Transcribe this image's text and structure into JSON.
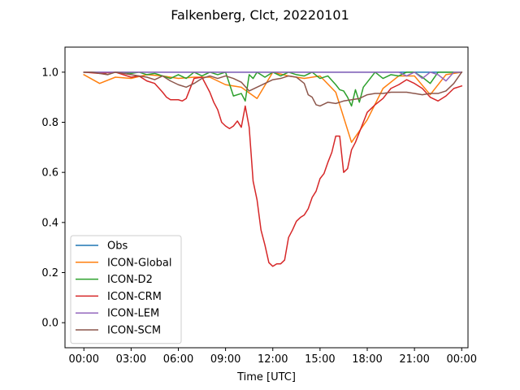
{
  "chart_data": {
    "type": "line",
    "title": "Falkenberg, Clct, 20220101",
    "xlabel": "Time [UTC]",
    "ylabel": "",
    "x_unit": "hours UTC",
    "xlim": [
      -1.2,
      24.4
    ],
    "ylim": [
      -0.1,
      1.1
    ],
    "x_ticks": [
      0,
      3,
      6,
      9,
      12,
      15,
      18,
      21,
      24
    ],
    "x_tick_labels": [
      "00:00",
      "03:00",
      "06:00",
      "09:00",
      "12:00",
      "15:00",
      "18:00",
      "21:00",
      "00:00"
    ],
    "y_ticks": [
      0.0,
      0.2,
      0.4,
      0.6,
      0.8,
      1.0
    ],
    "y_tick_labels": [
      "0.0",
      "0.2",
      "0.4",
      "0.6",
      "0.8",
      "1.0"
    ],
    "grid": false,
    "legend_position": "lower-left",
    "series": [
      {
        "name": "Obs",
        "color": "#1f77b4",
        "x": [
          0,
          24
        ],
        "y": [
          1.0,
          1.0
        ]
      },
      {
        "name": "ICON-Global",
        "color": "#ff7f0e",
        "x": [
          0,
          1,
          2,
          3,
          4,
          5,
          6,
          7,
          8,
          9,
          10,
          11,
          12,
          13,
          14,
          15,
          16,
          17,
          18,
          19,
          20,
          21,
          22,
          23,
          24
        ],
        "y": [
          0.99,
          0.955,
          0.98,
          0.975,
          0.99,
          0.985,
          0.975,
          0.98,
          0.98,
          0.95,
          0.94,
          0.895,
          1.0,
          0.985,
          0.975,
          0.985,
          0.92,
          0.72,
          0.81,
          0.935,
          0.985,
          0.985,
          0.91,
          0.99,
          1.0
        ]
      },
      {
        "name": "ICON-D2",
        "color": "#2ca02c",
        "x": [
          0,
          0.5,
          1,
          1.5,
          2,
          2.5,
          3,
          3.5,
          4,
          4.5,
          5,
          5.5,
          6,
          6.5,
          7,
          7.5,
          8,
          8.5,
          9,
          9.5,
          10,
          10.25,
          10.5,
          10.75,
          11,
          11.5,
          12,
          12.5,
          13,
          13.5,
          14,
          14.5,
          15,
          15.5,
          16,
          16.25,
          16.5,
          16.75,
          17,
          17.25,
          17.5,
          17.75,
          18,
          18.5,
          19,
          19.5,
          20,
          20.5,
          21,
          21.5,
          22,
          22.5,
          23,
          23.5,
          24
        ],
        "y": [
          1.0,
          1.0,
          1.0,
          0.99,
          1.0,
          1.0,
          0.995,
          1.0,
          0.99,
          0.995,
          0.985,
          0.975,
          0.99,
          0.975,
          1.0,
          0.985,
          1.0,
          0.99,
          1.0,
          0.905,
          0.915,
          0.885,
          0.99,
          0.975,
          1.0,
          0.98,
          1.0,
          0.985,
          1.0,
          0.99,
          0.985,
          1.0,
          0.975,
          0.985,
          0.95,
          0.93,
          0.925,
          0.9,
          0.865,
          0.93,
          0.88,
          0.94,
          0.96,
          1.0,
          0.975,
          0.99,
          0.985,
          1.0,
          1.0,
          0.98,
          0.955,
          1.0,
          1.0,
          1.0,
          1.0
        ]
      },
      {
        "name": "ICON-CRM",
        "color": "#d62728",
        "x": [
          0,
          1,
          2,
          3,
          3.5,
          4,
          4.5,
          5,
          5.25,
          5.5,
          5.75,
          6,
          6.25,
          6.5,
          7,
          7.5,
          8,
          8.25,
          8.5,
          8.75,
          9,
          9.25,
          9.5,
          9.75,
          10,
          10.25,
          10.5,
          10.75,
          11,
          11.25,
          11.5,
          11.75,
          12,
          12.25,
          12.5,
          12.75,
          13,
          13.25,
          13.5,
          13.75,
          14,
          14.25,
          14.5,
          14.75,
          15,
          15.25,
          15.5,
          15.75,
          16,
          16.25,
          16.5,
          16.75,
          17,
          17.25,
          17.5,
          18,
          18.5,
          19,
          19.5,
          20,
          20.5,
          21,
          21.5,
          22,
          22.5,
          23,
          23.5,
          24
        ],
        "y": [
          1.0,
          0.995,
          1.0,
          0.98,
          0.985,
          0.965,
          0.955,
          0.92,
          0.9,
          0.89,
          0.89,
          0.89,
          0.885,
          0.895,
          0.975,
          0.98,
          0.92,
          0.88,
          0.85,
          0.8,
          0.785,
          0.775,
          0.785,
          0.805,
          0.78,
          0.865,
          0.78,
          0.565,
          0.49,
          0.37,
          0.31,
          0.24,
          0.225,
          0.235,
          0.235,
          0.25,
          0.34,
          0.37,
          0.405,
          0.42,
          0.43,
          0.455,
          0.5,
          0.525,
          0.575,
          0.595,
          0.64,
          0.68,
          0.745,
          0.745,
          0.6,
          0.615,
          0.69,
          0.72,
          0.76,
          0.84,
          0.87,
          0.895,
          0.935,
          0.95,
          0.97,
          0.955,
          0.935,
          0.9,
          0.885,
          0.905,
          0.935,
          0.945
        ]
      },
      {
        "name": "ICON-LEM",
        "color": "#9467bd",
        "x": [
          0,
          2,
          4,
          6,
          8,
          10,
          12,
          14,
          16,
          18,
          20,
          20.5,
          21,
          21.5,
          22,
          22.5,
          23,
          23.5,
          24
        ],
        "y": [
          1.0,
          1.0,
          1.0,
          1.0,
          1.0,
          1.0,
          1.0,
          1.0,
          1.0,
          1.0,
          1.0,
          0.985,
          1.0,
          0.975,
          1.0,
          0.99,
          0.965,
          1.0,
          1.0
        ]
      },
      {
        "name": "ICON-SCM",
        "color": "#8c564b",
        "x": [
          0,
          0.5,
          1,
          1.5,
          2,
          2.5,
          3,
          3.5,
          4,
          4.5,
          5,
          5.5,
          6,
          6.5,
          7,
          7.5,
          8,
          8.5,
          9,
          9.5,
          10,
          10.5,
          11,
          11.5,
          12,
          12.5,
          13,
          13.5,
          14,
          14.25,
          14.5,
          14.75,
          15,
          15.5,
          16,
          16.5,
          17,
          17.5,
          18,
          18.5,
          19,
          19.5,
          20,
          20.5,
          21,
          21.5,
          22,
          22.5,
          23,
          23.5,
          24
        ],
        "y": [
          1.0,
          1.0,
          0.995,
          0.99,
          1.0,
          0.995,
          0.99,
          0.985,
          0.98,
          0.97,
          0.985,
          0.965,
          0.95,
          0.94,
          0.955,
          0.975,
          0.985,
          0.975,
          0.985,
          0.975,
          0.96,
          0.925,
          0.94,
          0.955,
          0.97,
          0.975,
          0.985,
          0.98,
          0.955,
          0.91,
          0.9,
          0.87,
          0.865,
          0.88,
          0.875,
          0.885,
          0.89,
          0.895,
          0.91,
          0.915,
          0.915,
          0.92,
          0.92,
          0.92,
          0.915,
          0.91,
          0.915,
          0.915,
          0.925,
          0.955,
          1.0
        ]
      }
    ]
  }
}
